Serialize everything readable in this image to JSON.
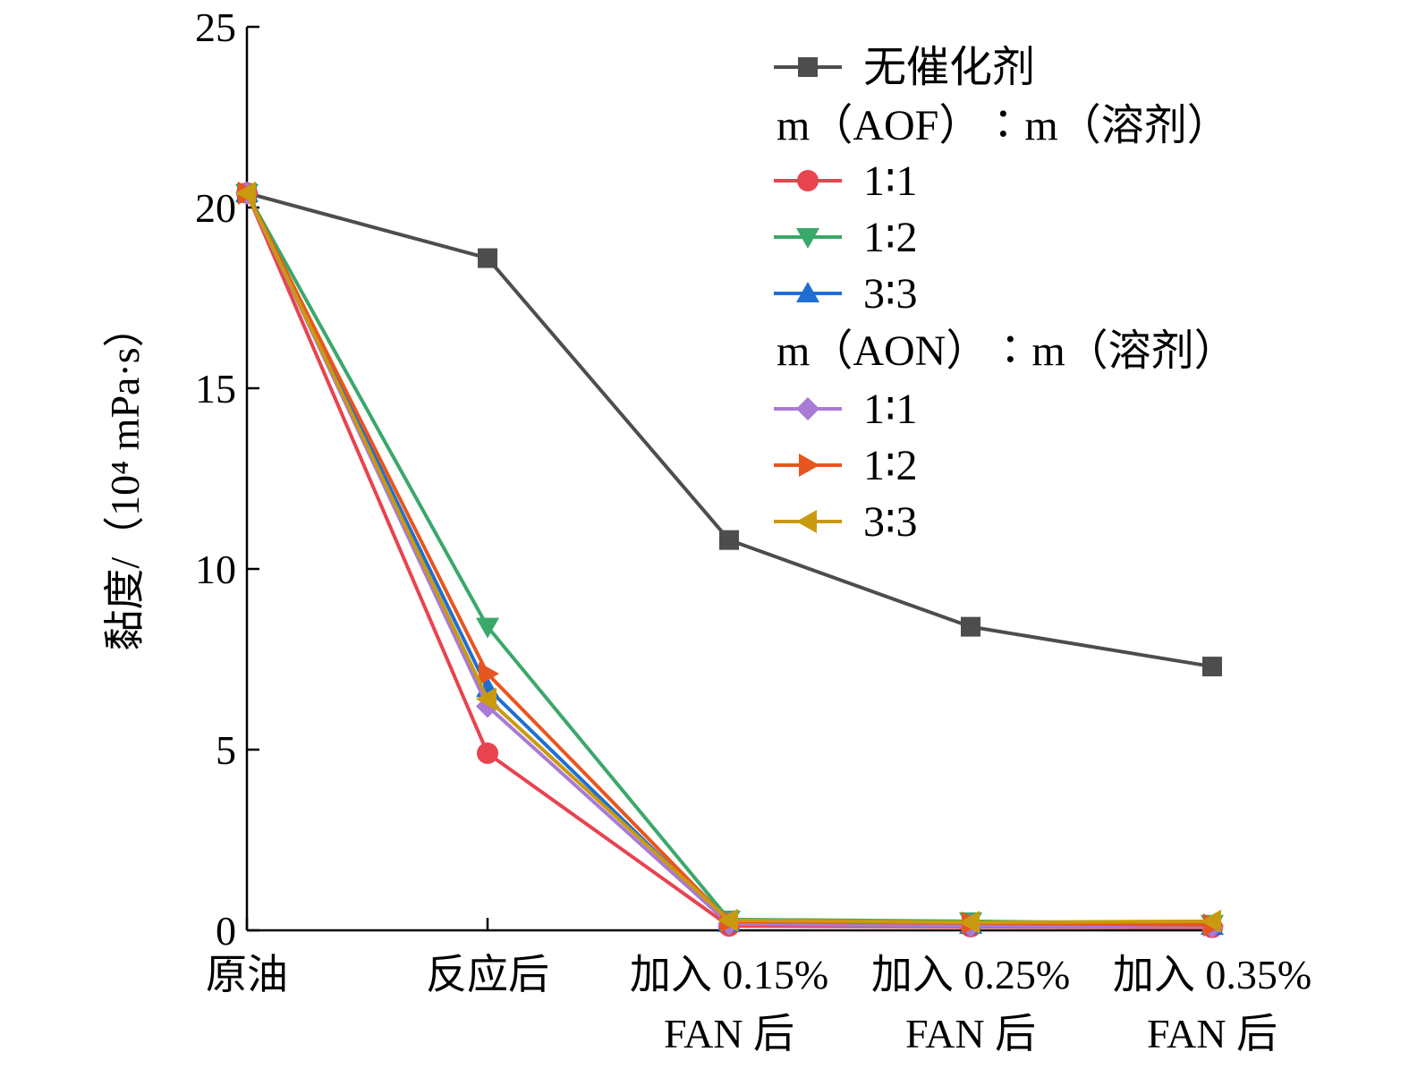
{
  "chart_data": {
    "type": "line",
    "categories": [
      [
        "原油"
      ],
      [
        "反应后"
      ],
      [
        "加入 0.15%",
        "FAN 后"
      ],
      [
        "加入 0.25%",
        "FAN 后"
      ],
      [
        "加入 0.35%",
        "FAN 后"
      ]
    ],
    "ylabel": "黏度/（10⁴ mPa·s）",
    "ylim": [
      0,
      25
    ],
    "yticks": [
      0,
      5,
      10,
      15,
      20,
      25
    ],
    "grid": false,
    "legend_position": "top-right",
    "legend_groups": [
      {
        "title": "",
        "series_indices": [
          0
        ]
      },
      {
        "title": "m（AOF）∶m（溶剂）",
        "series_indices": [
          1,
          2,
          3
        ]
      },
      {
        "title": "m（AON）∶m（溶剂）",
        "series_indices": [
          4,
          5,
          6
        ]
      }
    ],
    "series": [
      {
        "name": "无催化剂",
        "color": "#4d4d4d",
        "marker": "square",
        "values": [
          20.4,
          18.6,
          10.8,
          8.4,
          7.3
        ]
      },
      {
        "name": "1∶1",
        "color": "#e8434f",
        "marker": "circle",
        "values": [
          20.4,
          4.9,
          0.12,
          0.1,
          0.08
        ]
      },
      {
        "name": "1∶2",
        "color": "#3aa86b",
        "marker": "triangle-down",
        "values": [
          20.4,
          8.4,
          0.3,
          0.25,
          0.18
        ]
      },
      {
        "name": "3∶3",
        "color": "#1f6fd1",
        "marker": "triangle-up",
        "values": [
          20.4,
          6.7,
          0.2,
          0.15,
          0.12
        ]
      },
      {
        "name": "1∶1",
        "color": "#a97ad6",
        "marker": "diamond",
        "values": [
          20.4,
          6.2,
          0.18,
          0.12,
          0.1
        ]
      },
      {
        "name": "1∶2",
        "color": "#e8561f",
        "marker": "triangle-right",
        "values": [
          20.4,
          7.1,
          0.25,
          0.2,
          0.15
        ]
      },
      {
        "name": "3∶3",
        "color": "#c99a10",
        "marker": "triangle-left",
        "values": [
          20.4,
          6.4,
          0.28,
          0.22,
          0.25
        ]
      }
    ]
  }
}
